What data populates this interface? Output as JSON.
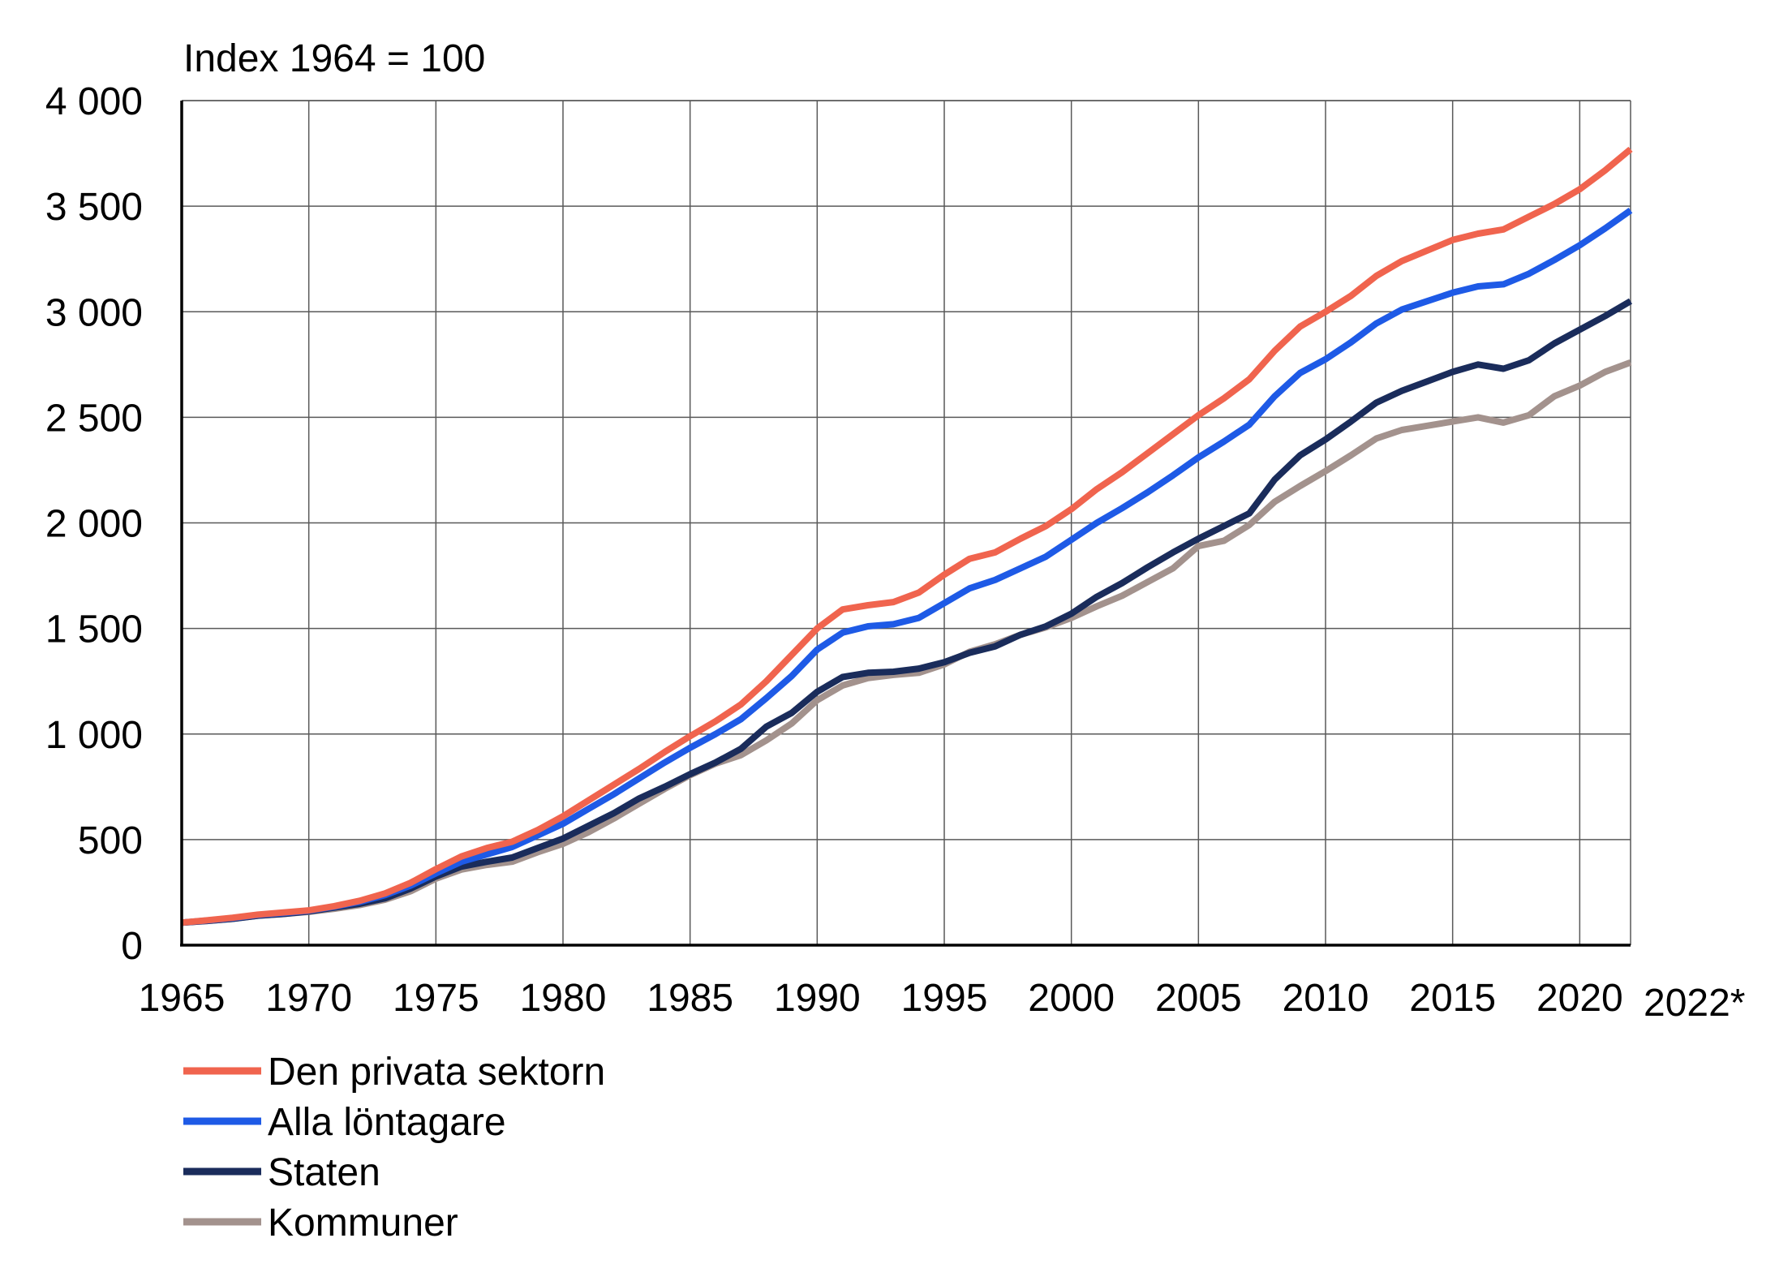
{
  "chart_data": {
    "type": "line",
    "title": "",
    "ylabel": "Index 1964 = 100",
    "xlabel": "",
    "ylim": [
      0,
      4000
    ],
    "xlim": [
      1965,
      2022
    ],
    "grid": true,
    "legend_position": "bottom-left",
    "y_ticks": [
      {
        "value": 0,
        "label": "0"
      },
      {
        "value": 500,
        "label": "500"
      },
      {
        "value": 1000,
        "label": "1 000"
      },
      {
        "value": 1500,
        "label": "1 500"
      },
      {
        "value": 2000,
        "label": "2 000"
      },
      {
        "value": 2500,
        "label": "2 500"
      },
      {
        "value": 3000,
        "label": "3 000"
      },
      {
        "value": 3500,
        "label": "3 500"
      },
      {
        "value": 4000,
        "label": "4 000"
      }
    ],
    "x_ticks": [
      {
        "value": 1965,
        "label": "1965"
      },
      {
        "value": 1970,
        "label": "1970"
      },
      {
        "value": 1975,
        "label": "1975"
      },
      {
        "value": 1980,
        "label": "1980"
      },
      {
        "value": 1985,
        "label": "1985"
      },
      {
        "value": 1990,
        "label": "1990"
      },
      {
        "value": 1995,
        "label": "1995"
      },
      {
        "value": 2000,
        "label": "2000"
      },
      {
        "value": 2005,
        "label": "2005"
      },
      {
        "value": 2010,
        "label": "2010"
      },
      {
        "value": 2015,
        "label": "2015"
      },
      {
        "value": 2020,
        "label": "2020"
      },
      {
        "value": 2022,
        "label": "2022*"
      }
    ],
    "x": [
      1965,
      1966,
      1967,
      1968,
      1969,
      1970,
      1971,
      1972,
      1973,
      1974,
      1975,
      1976,
      1977,
      1978,
      1979,
      1980,
      1981,
      1982,
      1983,
      1984,
      1985,
      1986,
      1987,
      1988,
      1989,
      1990,
      1991,
      1992,
      1993,
      1994,
      1995,
      1996,
      1997,
      1998,
      1999,
      2000,
      2001,
      2002,
      2003,
      2004,
      2005,
      2006,
      2007,
      2008,
      2009,
      2010,
      2011,
      2012,
      2013,
      2014,
      2015,
      2016,
      2017,
      2018,
      2019,
      2020,
      2021,
      2022
    ],
    "series": [
      {
        "name": "Den privata sektorn",
        "color": "#f0644e",
        "values": [
          107,
          118,
          130,
          145,
          155,
          165,
          185,
          210,
          245,
          295,
          360,
          420,
          460,
          490,
          545,
          610,
          685,
          760,
          835,
          915,
          990,
          1060,
          1140,
          1250,
          1375,
          1500,
          1590,
          1610,
          1625,
          1670,
          1755,
          1830,
          1860,
          1925,
          1985,
          2065,
          2160,
          2240,
          2330,
          2420,
          2510,
          2590,
          2680,
          2815,
          2930,
          3000,
          3075,
          3170,
          3240,
          3290,
          3340,
          3370,
          3390,
          3450,
          3510,
          3580,
          3670,
          3770
        ]
      },
      {
        "name": "Alla löntagare",
        "color": "#1e5ae6",
        "values": [
          107,
          117,
          128,
          143,
          152,
          163,
          182,
          205,
          237,
          282,
          340,
          395,
          430,
          465,
          520,
          575,
          645,
          715,
          790,
          865,
          935,
          1000,
          1070,
          1170,
          1275,
          1400,
          1480,
          1510,
          1520,
          1550,
          1620,
          1690,
          1730,
          1785,
          1840,
          1920,
          2000,
          2070,
          2145,
          2225,
          2310,
          2385,
          2465,
          2600,
          2710,
          2775,
          2855,
          2945,
          3010,
          3050,
          3090,
          3120,
          3130,
          3180,
          3245,
          3315,
          3395,
          3480
        ]
      },
      {
        "name": "Staten",
        "color": "#1a2c5b",
        "values": [
          107,
          115,
          125,
          140,
          148,
          160,
          178,
          196,
          222,
          268,
          325,
          372,
          395,
          415,
          460,
          505,
          565,
          625,
          695,
          750,
          810,
          865,
          930,
          1035,
          1100,
          1200,
          1270,
          1290,
          1295,
          1310,
          1340,
          1385,
          1415,
          1470,
          1510,
          1570,
          1650,
          1715,
          1790,
          1860,
          1925,
          1985,
          2045,
          2205,
          2320,
          2395,
          2480,
          2570,
          2625,
          2670,
          2715,
          2750,
          2730,
          2770,
          2850,
          2915,
          2980,
          3050
        ]
      },
      {
        "name": "Kommuner",
        "color": "#a3928d",
        "values": [
          107,
          115,
          125,
          140,
          148,
          158,
          172,
          190,
          215,
          255,
          315,
          358,
          380,
          395,
          440,
          480,
          535,
          600,
          670,
          740,
          805,
          860,
          900,
          970,
          1050,
          1160,
          1230,
          1265,
          1280,
          1290,
          1330,
          1390,
          1425,
          1470,
          1505,
          1550,
          1605,
          1655,
          1720,
          1785,
          1890,
          1915,
          1990,
          2100,
          2175,
          2245,
          2320,
          2400,
          2440,
          2460,
          2480,
          2500,
          2475,
          2510,
          2600,
          2650,
          2715,
          2760
        ]
      }
    ]
  }
}
